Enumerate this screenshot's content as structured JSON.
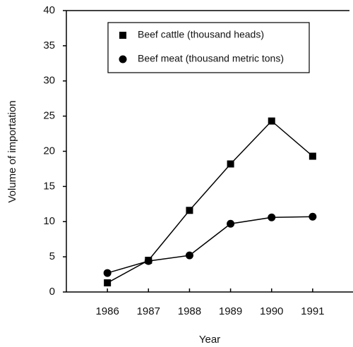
{
  "chart_data": {
    "type": "line",
    "x": [
      1986,
      1987,
      1988,
      1989,
      1990,
      1991
    ],
    "xlim": [
      1985,
      1992
    ],
    "xticks": [
      1986,
      1987,
      1988,
      1989,
      1990,
      1991
    ],
    "ylim": [
      0,
      40
    ],
    "yticks": [
      0,
      5,
      10,
      15,
      20,
      25,
      30,
      35,
      40
    ],
    "xlabel": "Year",
    "ylabel": "Volume of importation",
    "legend": "upper left",
    "series": [
      {
        "name": "Beef cattle (thousand heads)",
        "color": "#000000",
        "marker": "square",
        "values": [
          1.3,
          4.5,
          11.6,
          18.2,
          24.3,
          19.3
        ]
      },
      {
        "name": "Beef meat (thousand metric tons)",
        "color": "#000000",
        "marker": "circle",
        "values": [
          2.7,
          4.4,
          5.2,
          9.7,
          10.6,
          10.7
        ]
      }
    ]
  }
}
